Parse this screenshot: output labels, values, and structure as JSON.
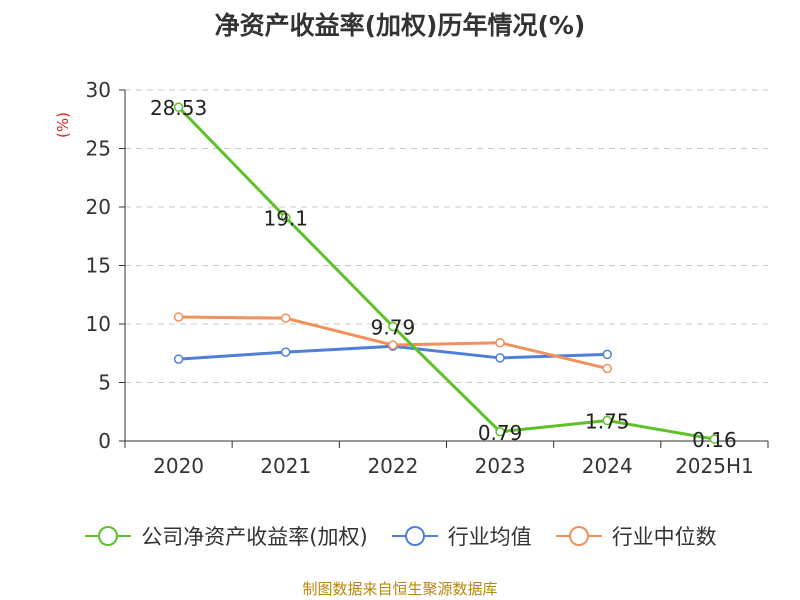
{
  "title": "净资产收益率(加权)历年情况(%)",
  "source": "制图数据来自恒生聚源数据库",
  "chart_data": {
    "type": "line",
    "title": "净资产收益率(加权)历年情况(%)",
    "ylabel": "(%)",
    "xlabel": "",
    "ylim": [
      0,
      30
    ],
    "yticks": [
      0,
      5,
      10,
      15,
      20,
      25,
      30
    ],
    "grid": true,
    "legend_position": "bottom",
    "categories": [
      "2020",
      "2021",
      "2022",
      "2023",
      "2024",
      "2025H1"
    ],
    "series": [
      {
        "name": "公司净资产收益率(加权)",
        "color": "#5dc12a",
        "values": [
          28.53,
          19.1,
          9.79,
          0.79,
          1.75,
          0.16
        ],
        "labels": [
          "28.53",
          "19.1",
          "9.79",
          "0.79",
          "1.75",
          "0.16"
        ]
      },
      {
        "name": "行业均值",
        "color": "#4f7fd9",
        "values": [
          7.0,
          7.6,
          8.1,
          7.1,
          7.4,
          null
        ]
      },
      {
        "name": "行业中位数",
        "color": "#f0905c",
        "values": [
          10.6,
          10.5,
          8.2,
          8.4,
          6.2,
          null
        ]
      }
    ]
  }
}
